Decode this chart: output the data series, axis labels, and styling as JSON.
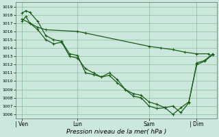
{
  "bg_color": "#cce8dc",
  "grid_color": "#88bb99",
  "line_color": "#1a5c1a",
  "xlabel": "Pression niveau de la mer( hPa )",
  "ylim": [
    1005.5,
    1019.5
  ],
  "yticks": [
    1006,
    1007,
    1008,
    1009,
    1010,
    1011,
    1012,
    1013,
    1014,
    1015,
    1016,
    1017,
    1018,
    1019
  ],
  "xtick_labels": [
    "| Ven",
    "Lun",
    "Sam",
    "| Dim"
  ],
  "xtick_positions": [
    2,
    30,
    66,
    90
  ],
  "xlim": [
    -1,
    100
  ],
  "line1_x": [
    2,
    6,
    10,
    14,
    30,
    34,
    66,
    72,
    78,
    84,
    90,
    96
  ],
  "line1_y": [
    1017.5,
    1017.0,
    1016.5,
    1016.2,
    1016.0,
    1015.8,
    1014.2,
    1014.0,
    1013.8,
    1013.5,
    1013.3,
    1013.3
  ],
  "line2_x": [
    2,
    4,
    6,
    10,
    14,
    18,
    22,
    26,
    30,
    34,
    38,
    42,
    46,
    50,
    54,
    58,
    62,
    66,
    70,
    74,
    78,
    82,
    86,
    90,
    94,
    98
  ],
  "line2_y": [
    1018.2,
    1018.5,
    1018.3,
    1017.2,
    1015.5,
    1015.0,
    1014.8,
    1013.3,
    1013.1,
    1011.0,
    1010.8,
    1010.5,
    1011.0,
    1010.2,
    1009.0,
    1008.5,
    1008.3,
    1007.5,
    1007.2,
    1006.8,
    1007.0,
    1006.2,
    1007.4,
    1012.2,
    1012.5,
    1013.3
  ],
  "line3_x": [
    2,
    4,
    6,
    10,
    14,
    18,
    22,
    26,
    30,
    34,
    38,
    42,
    46,
    50,
    54,
    58,
    62,
    66,
    70,
    74,
    78,
    82,
    86,
    90,
    94,
    98
  ],
  "line3_y": [
    1017.2,
    1017.8,
    1017.0,
    1016.2,
    1015.0,
    1014.5,
    1014.7,
    1013.0,
    1012.8,
    1011.5,
    1011.0,
    1010.5,
    1010.7,
    1009.8,
    1009.0,
    1008.2,
    1008.0,
    1007.0,
    1006.7,
    1006.8,
    1006.0,
    1006.8,
    1007.5,
    1012.0,
    1012.4,
    1013.2
  ]
}
